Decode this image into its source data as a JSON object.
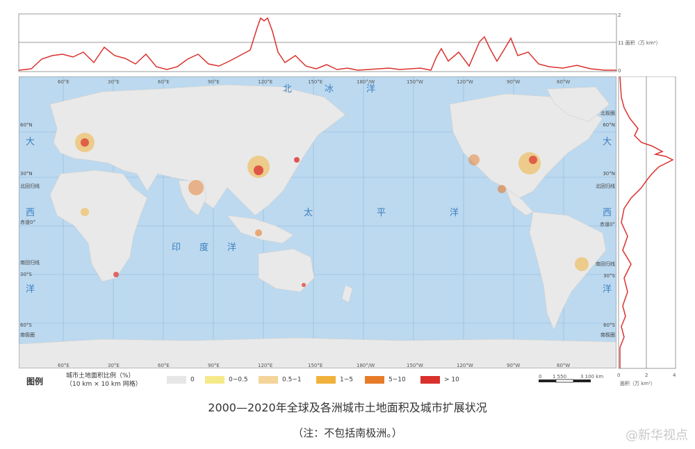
{
  "legend": {
    "title": "图例",
    "subtitle_line1": "城市土地面积比例（%）",
    "subtitle_line2": "（10 km × 10 km 网格）",
    "items": [
      {
        "label": "0",
        "color": "#e6e6e6"
      },
      {
        "label": "0~0.5",
        "color": "#f5ea8a"
      },
      {
        "label": "0.5~1",
        "color": "#f5d49a"
      },
      {
        "label": "1~5",
        "color": "#f1b23c"
      },
      {
        "label": "5~10",
        "color": "#e67c2a"
      },
      {
        "label": "> 10",
        "color": "#d9302c"
      }
    ]
  },
  "scale_bar": {
    "ticks": [
      "0",
      "1 550",
      "3 100 km"
    ]
  },
  "top_profile": {
    "axis_label": "1 面积（万 km²）",
    "ticks": [
      "0",
      "1",
      "2"
    ],
    "color": "#d9302c"
  },
  "side_profile": {
    "axis_label": "面积（万 km²）",
    "ticks": [
      "0",
      "2",
      "4"
    ],
    "color": "#d9302c"
  },
  "map": {
    "longitude_labels": [
      "60°E",
      "30°E",
      "60°E",
      "90°E",
      "120°E",
      "150°E",
      "180°/W",
      "150°W",
      "120°W",
      "90°W",
      "60°W"
    ],
    "latitude_labels_left": [
      "60°N",
      "30°N",
      "北回归线",
      "赤道0°",
      "南回归线",
      "30°S",
      "60°S",
      "南极圈"
    ],
    "latitude_labels_right": [
      "北极圈",
      "60°N",
      "30°N",
      "北回归线",
      "赤道0°",
      "南回归线",
      "30°S",
      "60°S",
      "南极圈"
    ],
    "ocean_labels": {
      "arctic": [
        "北",
        "冰",
        "洋"
      ],
      "pacific": [
        "太",
        "平",
        "洋"
      ],
      "indian": [
        "印",
        "度",
        "洋"
      ],
      "atlantic_left": [
        "大",
        "西",
        "洋"
      ],
      "atlantic_right": [
        "大",
        "西",
        "洋"
      ]
    },
    "colors": {
      "ocean": "#bcd9ef",
      "land": "#e9e9e9",
      "grid": "#8fb7d9"
    }
  },
  "caption": "2000—2020年全球及各洲城市土地面积及城市扩展状况",
  "note": "（注：不包括南极洲。）",
  "watermark": "@新华视点"
}
